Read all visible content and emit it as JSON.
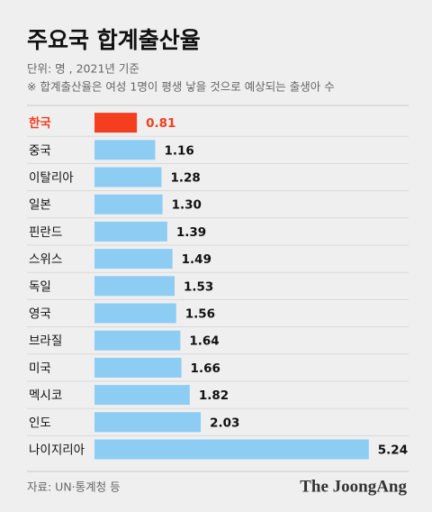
{
  "chart_data": {
    "type": "bar",
    "orientation": "horizontal",
    "title": "주요국 합계출산율",
    "subtitle": [
      "단위: 명 , 2021년 기준",
      "※ 합계출산율은 여성 1명이 평생 낳을 것으로 예상되는 출생아 수"
    ],
    "categories": [
      "한국",
      "중국",
      "이탈리아",
      "일본",
      "핀란드",
      "스위스",
      "독일",
      "영국",
      "브라질",
      "미국",
      "멕시코",
      "인도",
      "나이지리아"
    ],
    "values": [
      0.81,
      1.16,
      1.28,
      1.3,
      1.39,
      1.49,
      1.53,
      1.56,
      1.64,
      1.66,
      1.82,
      2.03,
      5.24
    ],
    "value_labels": [
      "0.81",
      "1.16",
      "1.28",
      "1.30",
      "1.39",
      "1.49",
      "1.53",
      "1.56",
      "1.64",
      "1.66",
      "1.82",
      "2.03",
      "5.24"
    ],
    "color": "#8ecdf3",
    "colors": [
      "#f43e1f",
      "#8ecdf3",
      "#8ecdf3",
      "#8ecdf3",
      "#8ecdf3",
      "#8ecdf3",
      "#8ecdf3",
      "#8ecdf3",
      "#8ecdf3",
      "#8ecdf3",
      "#8ecdf3",
      "#8ecdf3",
      "#8ecdf3"
    ],
    "xlim": [
      0,
      6
    ],
    "source": "자료: UN·통계청 등",
    "logo": "The JoongAng"
  }
}
